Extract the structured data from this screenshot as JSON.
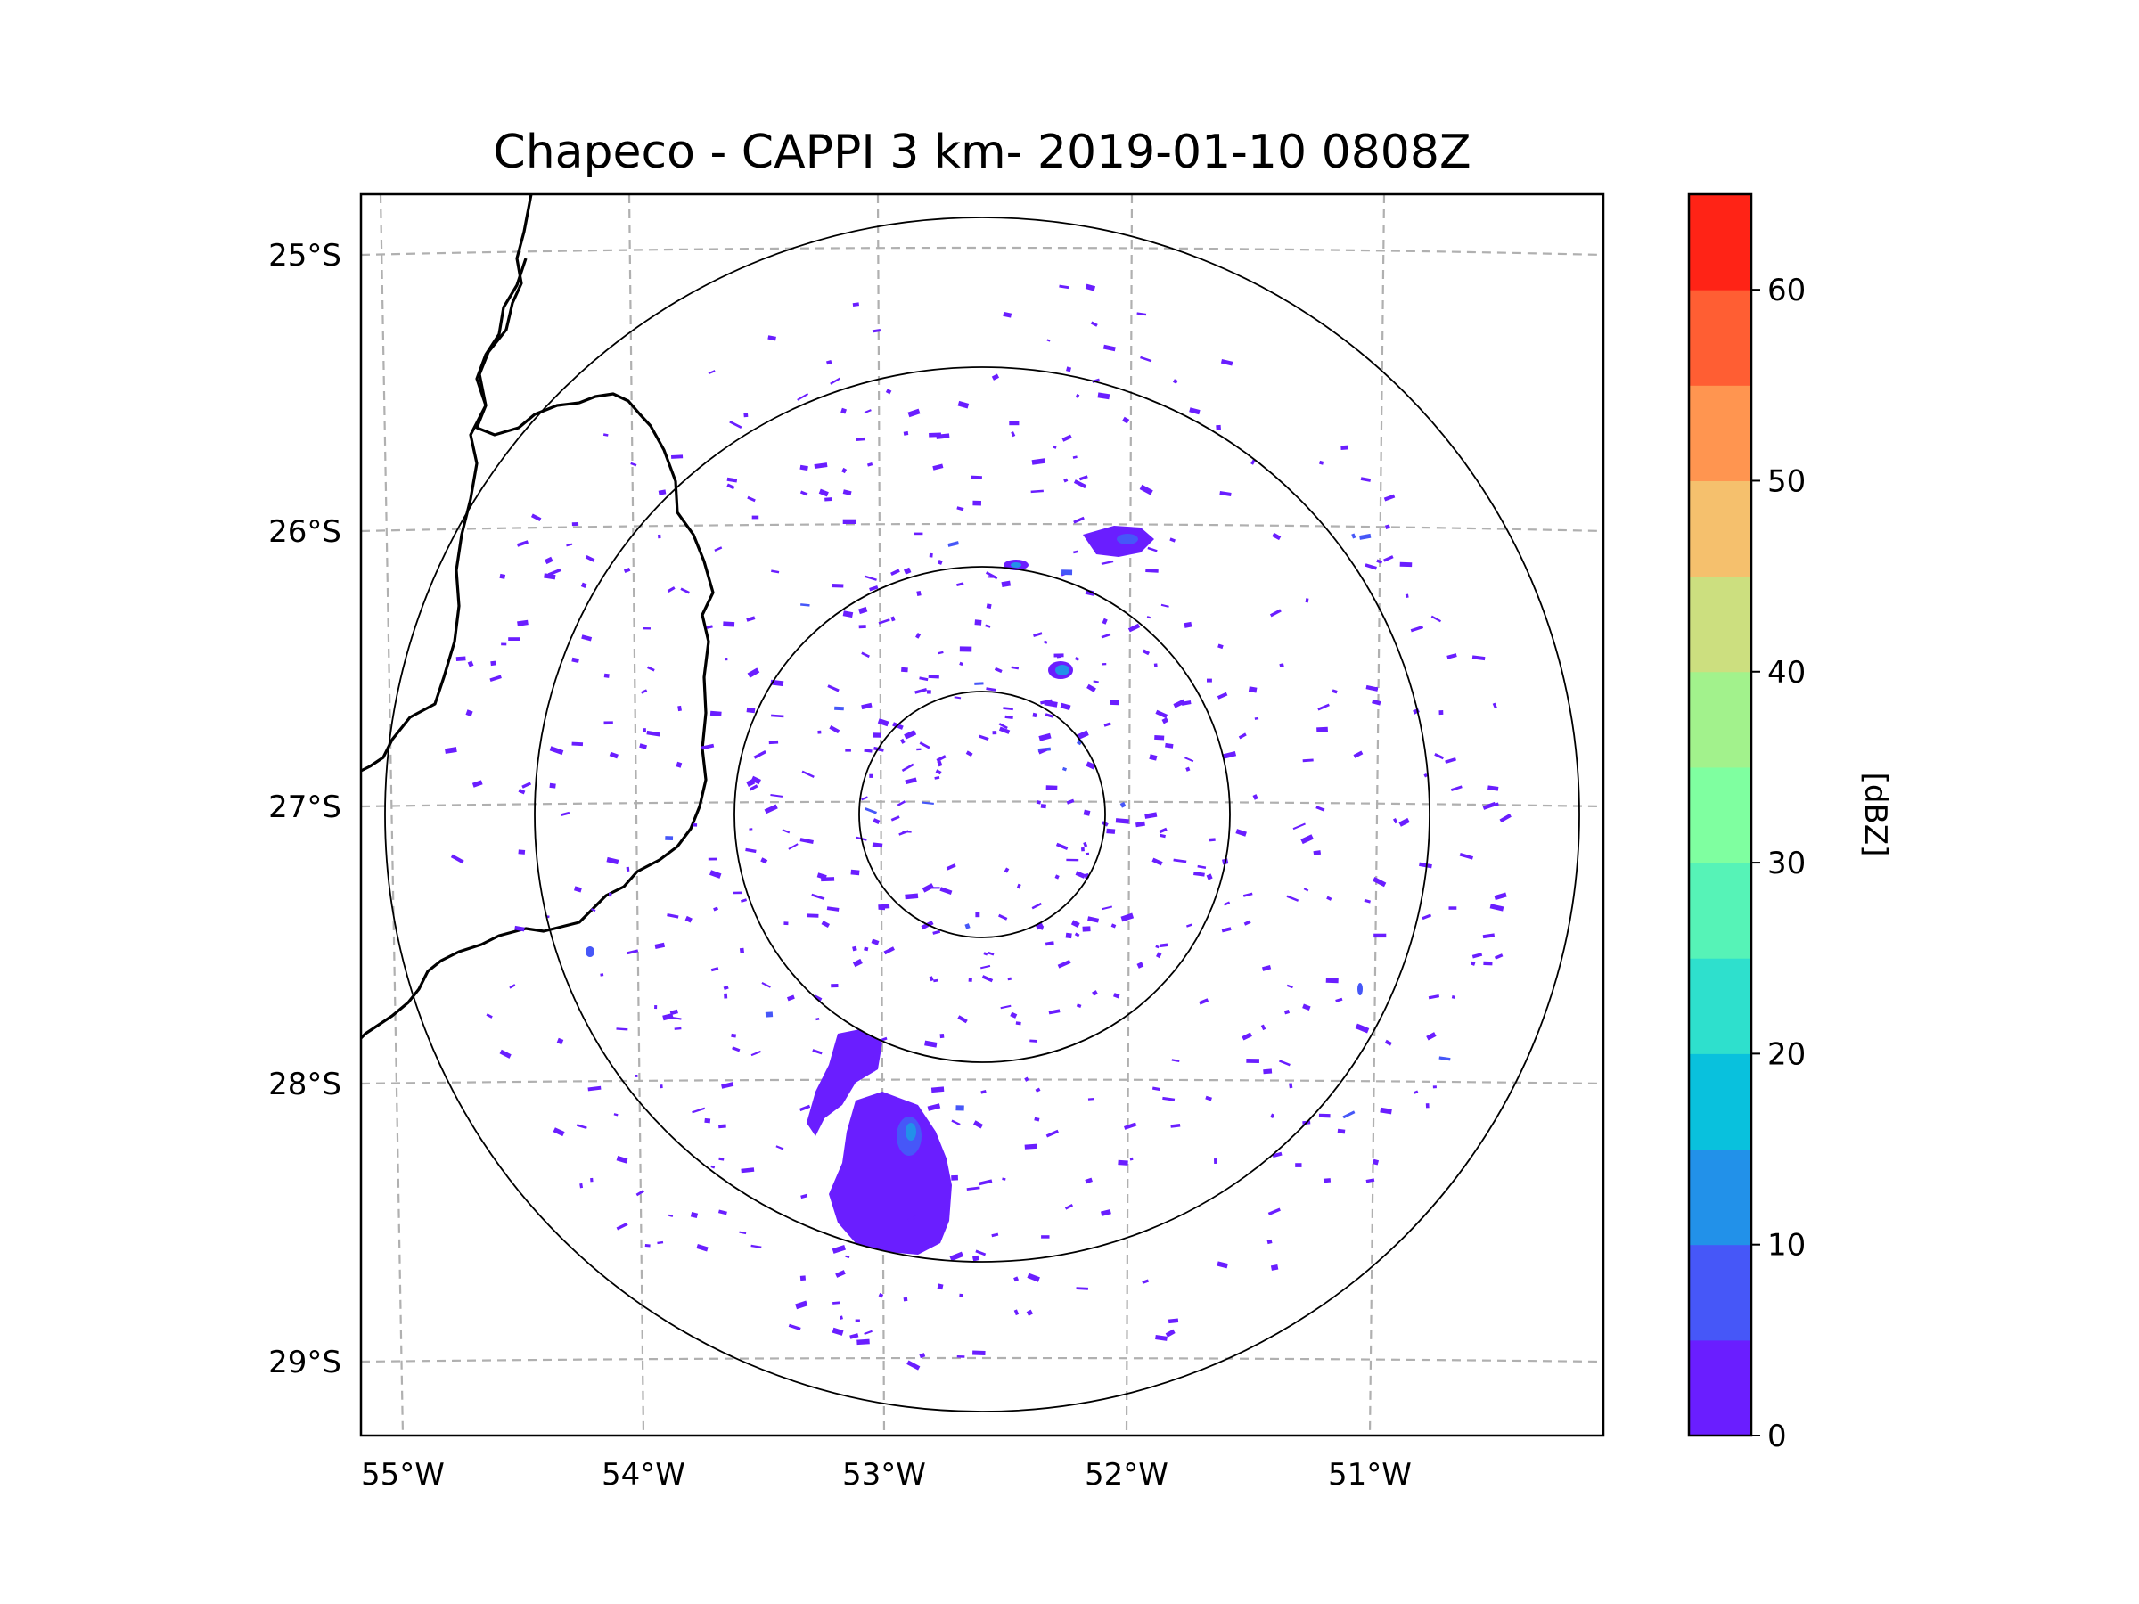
{
  "title": "Chapeco - CAPPI 3 km- 2019-01-10 0808Z",
  "map": {
    "lat_labels": [
      "25°S",
      "26°S",
      "27°S",
      "28°S",
      "29°S"
    ],
    "lon_labels": [
      "55°W",
      "54°W",
      "53°W",
      "52°W",
      "51°W"
    ],
    "range_rings": 4,
    "gridline_color": "#b0b0b0",
    "ring_color": "#000000",
    "radar_site": "Chapeco"
  },
  "colorbar": {
    "label": "[dBZ]",
    "min": 0,
    "max": 65,
    "step": 5,
    "tick_values": [
      0,
      10,
      20,
      30,
      40,
      50,
      60
    ],
    "tick_labels": [
      "0",
      "10",
      "20",
      "30",
      "40",
      "50",
      "60"
    ],
    "colors": [
      "#6a1eff",
      "#4657f8",
      "#2291e9",
      "#09c1dd",
      "#2ee0cd",
      "#56f3b7",
      "#7fffa0",
      "#a2f28c",
      "#ccdf7f",
      "#f5c06d",
      "#ff9550",
      "#ff5e33",
      "#ff2316"
    ]
  },
  "echo_colors": {
    "weak": "#6a1eff",
    "moderate": "#4657f8",
    "strong": "#2291e9"
  }
}
